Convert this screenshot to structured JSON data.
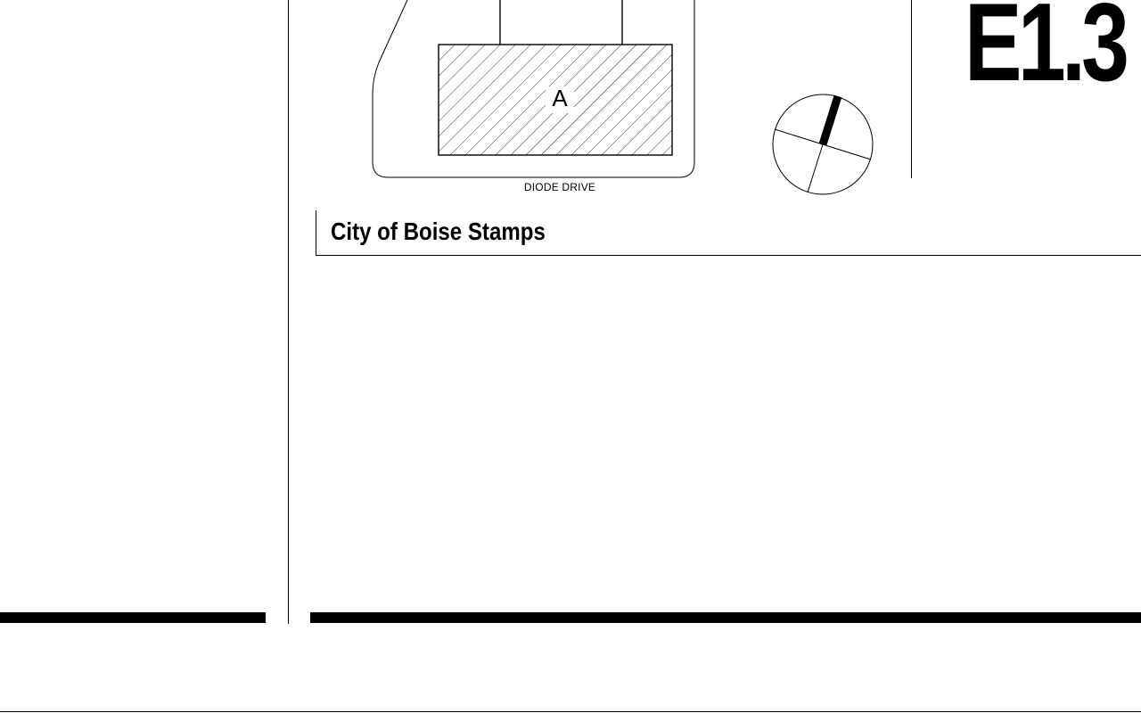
{
  "site_plan": {
    "street_label": "DIODE DRIVE",
    "building_tag": "A"
  },
  "title_block": {
    "sheet_number": "E1.3",
    "stamps_title": "City of Boise Stamps"
  }
}
